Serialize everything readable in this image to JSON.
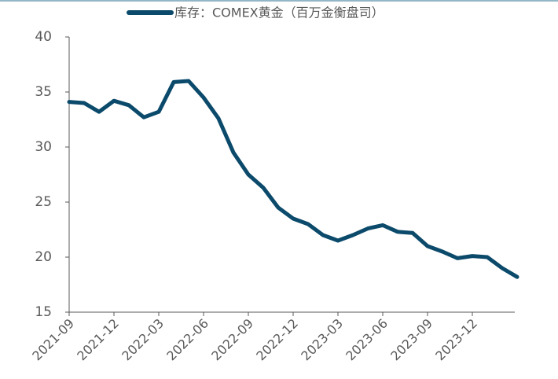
{
  "chart_data": {
    "type": "line",
    "legend": "库存：COMEX黄金（百万金衡盘司）",
    "x": [
      "2021-09",
      "2021-10",
      "2021-11",
      "2021-12",
      "2022-01",
      "2022-02",
      "2022-03",
      "2022-04",
      "2022-05",
      "2022-06",
      "2022-07",
      "2022-08",
      "2022-09",
      "2022-10",
      "2022-11",
      "2022-12",
      "2023-01",
      "2023-02",
      "2023-03",
      "2023-04",
      "2023-05",
      "2023-06",
      "2023-07",
      "2023-08",
      "2023-09",
      "2023-10",
      "2023-11",
      "2023-12",
      "2024-01",
      "2024-02",
      "2024-03"
    ],
    "series": [
      {
        "name": "库存：COMEX黄金（百万金衡盘司）",
        "color": "#0b4a6b",
        "values": [
          34.1,
          34.0,
          33.2,
          34.2,
          33.8,
          32.7,
          33.2,
          35.9,
          36.0,
          34.5,
          32.6,
          29.5,
          27.5,
          26.3,
          24.5,
          23.5,
          23.0,
          22.0,
          21.5,
          22.0,
          22.6,
          22.9,
          22.3,
          22.2,
          21.0,
          20.5,
          19.9,
          20.1,
          20.0,
          19.0,
          18.2
        ]
      }
    ],
    "xticks": [
      "2021-09",
      "2021-12",
      "2022-03",
      "2022-06",
      "2022-09",
      "2022-12",
      "2023-03",
      "2023-06",
      "2023-09",
      "2023-12"
    ],
    "ylim": [
      15,
      40
    ],
    "yticks": [
      15,
      20,
      25,
      30,
      35,
      40
    ],
    "grid": false
  }
}
